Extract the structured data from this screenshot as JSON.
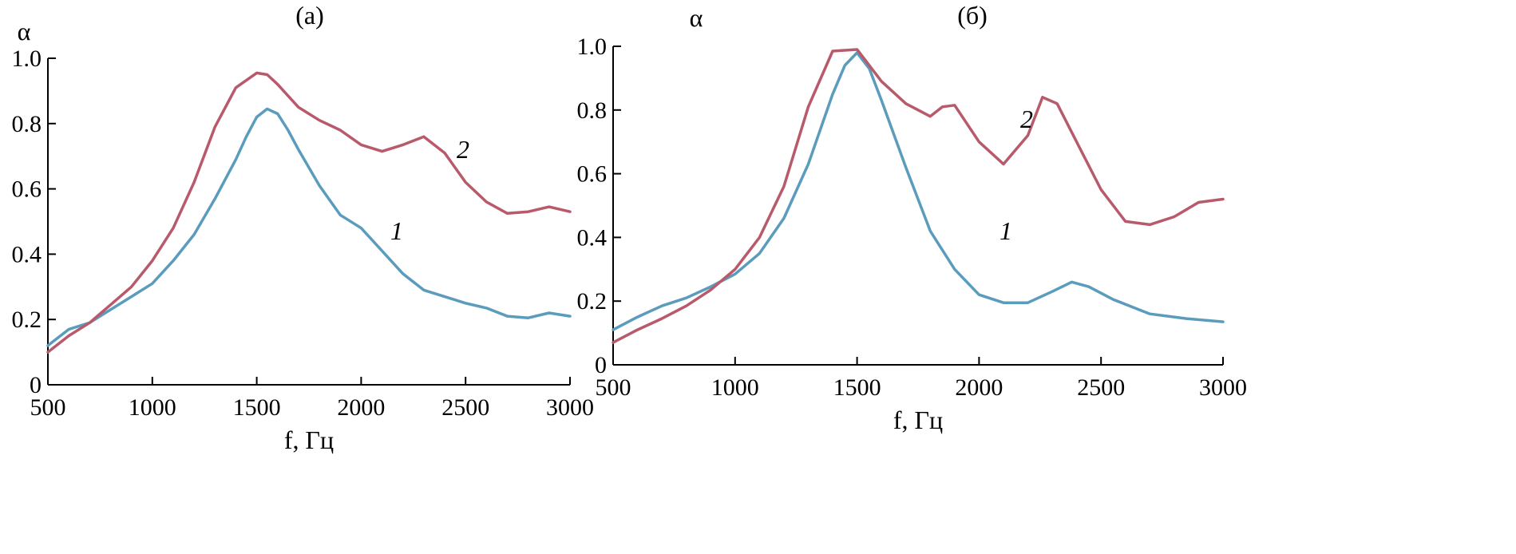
{
  "chart_data": [
    {
      "type": "line",
      "title": "(а)",
      "xlabel": "f, Гц",
      "ylabel": "α",
      "xlim": [
        500,
        3000
      ],
      "ylim": [
        0,
        1.0
      ],
      "xticks": [
        "500",
        "1000",
        "1500",
        "2000",
        "2500",
        "3000"
      ],
      "yticks": [
        "0",
        "0.2",
        "0.4",
        "0.6",
        "0.8",
        "1.0"
      ],
      "grid": false,
      "series": [
        {
          "name": "1",
          "color": "#5b9cbd",
          "points": [
            [
              500,
              0.12
            ],
            [
              600,
              0.17
            ],
            [
              700,
              0.19
            ],
            [
              800,
              0.23
            ],
            [
              900,
              0.27
            ],
            [
              1000,
              0.31
            ],
            [
              1100,
              0.38
            ],
            [
              1200,
              0.46
            ],
            [
              1300,
              0.57
            ],
            [
              1400,
              0.69
            ],
            [
              1450,
              0.76
            ],
            [
              1500,
              0.82
            ],
            [
              1550,
              0.845
            ],
            [
              1600,
              0.83
            ],
            [
              1650,
              0.78
            ],
            [
              1700,
              0.72
            ],
            [
              1800,
              0.61
            ],
            [
              1900,
              0.52
            ],
            [
              2000,
              0.48
            ],
            [
              2100,
              0.41
            ],
            [
              2200,
              0.34
            ],
            [
              2300,
              0.29
            ],
            [
              2400,
              0.27
            ],
            [
              2500,
              0.25
            ],
            [
              2600,
              0.235
            ],
            [
              2700,
              0.21
            ],
            [
              2800,
              0.205
            ],
            [
              2900,
              0.22
            ],
            [
              3000,
              0.21
            ]
          ]
        },
        {
          "name": "2",
          "color": "#b85a6b",
          "points": [
            [
              500,
              0.1
            ],
            [
              600,
              0.15
            ],
            [
              700,
              0.19
            ],
            [
              800,
              0.245
            ],
            [
              900,
              0.3
            ],
            [
              1000,
              0.38
            ],
            [
              1100,
              0.48
            ],
            [
              1200,
              0.62
            ],
            [
              1300,
              0.79
            ],
            [
              1400,
              0.91
            ],
            [
              1500,
              0.955
            ],
            [
              1550,
              0.95
            ],
            [
              1600,
              0.92
            ],
            [
              1700,
              0.85
            ],
            [
              1800,
              0.81
            ],
            [
              1900,
              0.78
            ],
            [
              2000,
              0.735
            ],
            [
              2100,
              0.715
            ],
            [
              2200,
              0.735
            ],
            [
              2300,
              0.76
            ],
            [
              2400,
              0.71
            ],
            [
              2500,
              0.62
            ],
            [
              2600,
              0.56
            ],
            [
              2700,
              0.525
            ],
            [
              2800,
              0.53
            ],
            [
              2900,
              0.545
            ],
            [
              3000,
              0.53
            ]
          ]
        }
      ]
    },
    {
      "type": "line",
      "title": "(б)",
      "xlabel": "f, Гц",
      "ylabel": "α",
      "xlim": [
        500,
        3000
      ],
      "ylim": [
        0,
        1.0
      ],
      "xticks": [
        "500",
        "1000",
        "1500",
        "2000",
        "2500",
        "3000"
      ],
      "yticks": [
        "0",
        "0.2",
        "0.4",
        "0.6",
        "0.8",
        "1.0"
      ],
      "grid": false,
      "series": [
        {
          "name": "1",
          "color": "#5b9cbd",
          "points": [
            [
              500,
              0.11
            ],
            [
              600,
              0.15
            ],
            [
              700,
              0.185
            ],
            [
              800,
              0.21
            ],
            [
              900,
              0.245
            ],
            [
              1000,
              0.285
            ],
            [
              1100,
              0.35
            ],
            [
              1200,
              0.46
            ],
            [
              1300,
              0.63
            ],
            [
              1400,
              0.85
            ],
            [
              1450,
              0.94
            ],
            [
              1500,
              0.98
            ],
            [
              1550,
              0.93
            ],
            [
              1600,
              0.83
            ],
            [
              1700,
              0.62
            ],
            [
              1800,
              0.42
            ],
            [
              1900,
              0.3
            ],
            [
              2000,
              0.22
            ],
            [
              2100,
              0.195
            ],
            [
              2200,
              0.195
            ],
            [
              2300,
              0.23
            ],
            [
              2380,
              0.26
            ],
            [
              2450,
              0.245
            ],
            [
              2550,
              0.205
            ],
            [
              2700,
              0.16
            ],
            [
              2850,
              0.145
            ],
            [
              3000,
              0.135
            ]
          ]
        },
        {
          "name": "2",
          "color": "#b85a6b",
          "points": [
            [
              500,
              0.07
            ],
            [
              600,
              0.11
            ],
            [
              700,
              0.145
            ],
            [
              800,
              0.185
            ],
            [
              900,
              0.235
            ],
            [
              1000,
              0.3
            ],
            [
              1100,
              0.4
            ],
            [
              1200,
              0.56
            ],
            [
              1300,
              0.81
            ],
            [
              1400,
              0.985
            ],
            [
              1500,
              0.99
            ],
            [
              1600,
              0.89
            ],
            [
              1700,
              0.82
            ],
            [
              1800,
              0.78
            ],
            [
              1850,
              0.81
            ],
            [
              1900,
              0.815
            ],
            [
              2000,
              0.7
            ],
            [
              2100,
              0.63
            ],
            [
              2200,
              0.72
            ],
            [
              2260,
              0.84
            ],
            [
              2320,
              0.82
            ],
            [
              2400,
              0.7
            ],
            [
              2500,
              0.55
            ],
            [
              2600,
              0.45
            ],
            [
              2700,
              0.44
            ],
            [
              2800,
              0.465
            ],
            [
              2900,
              0.51
            ],
            [
              3000,
              0.52
            ]
          ]
        }
      ]
    }
  ]
}
